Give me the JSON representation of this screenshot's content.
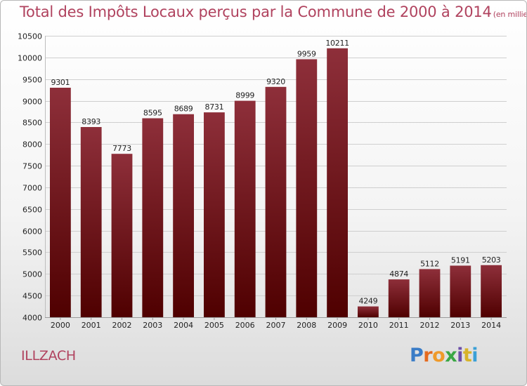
{
  "title": "Total des Impôts Locaux perçus par la Commune de 2000 à 2014",
  "title_unit": "(en milliers d'€)",
  "commune": "ILLZACH",
  "logo": {
    "text": "Proxiti",
    "letter_colors": [
      "#3a7cc7",
      "#e46a1f",
      "#ef9a2a",
      "#3aa744",
      "#6c4ea8",
      "#d8b32a",
      "#3aa0d6"
    ]
  },
  "colors": {
    "bar_top": "#8e2f3a",
    "bar_bottom": "#4f0000",
    "grid": "#cfcfcf",
    "axis_text": "#222222",
    "title": "#b0425e"
  },
  "chart_data": {
    "type": "bar",
    "categories": [
      "2000",
      "2001",
      "2002",
      "2003",
      "2004",
      "2005",
      "2006",
      "2007",
      "2008",
      "2009",
      "2010",
      "2011",
      "2012",
      "2013",
      "2014"
    ],
    "values": [
      9301,
      8393,
      7773,
      8595,
      8689,
      8731,
      8999,
      9320,
      9959,
      10211,
      4249,
      4874,
      5112,
      5191,
      5203
    ],
    "ylim": [
      4000,
      10500
    ],
    "yticks": [
      4000,
      4500,
      5000,
      5500,
      6000,
      6500,
      7000,
      7500,
      8000,
      8500,
      9000,
      9500,
      10000,
      10500
    ],
    "grid": true,
    "data_labels": true
  }
}
